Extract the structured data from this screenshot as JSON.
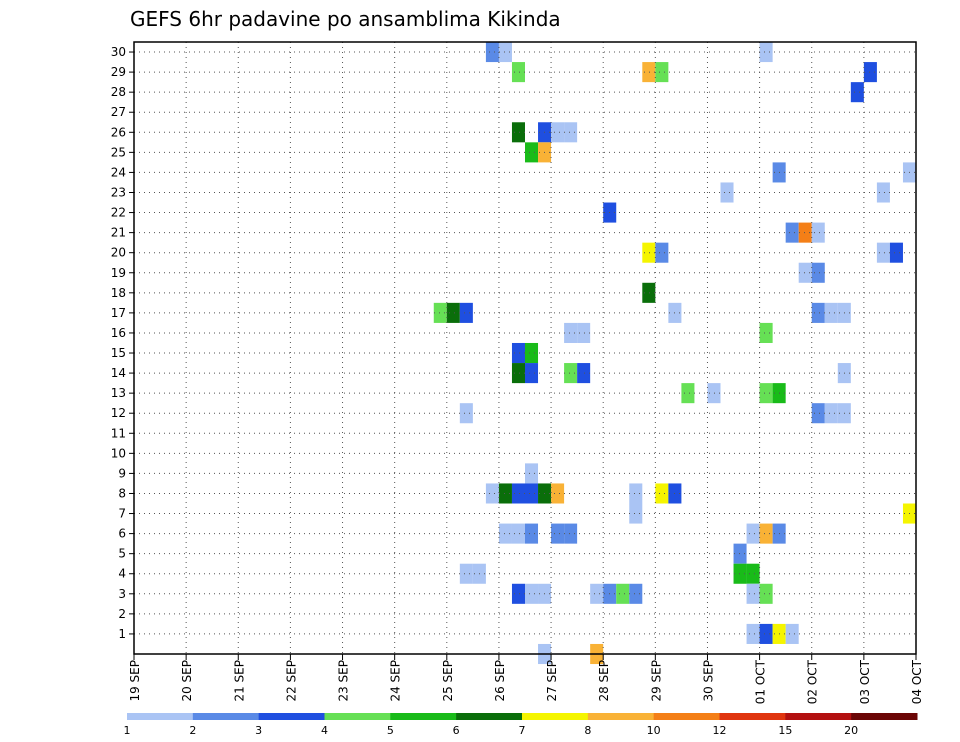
{
  "chart_data": {
    "type": "heatmap",
    "title": "GEFS 6hr padavine po ansamblima Kikinda",
    "xlabel": "",
    "ylabel": "",
    "x_ticks": [
      "19 SEP",
      "20 SEP",
      "21 SEP",
      "22 SEP",
      "23 SEP",
      "24 SEP",
      "25 SEP",
      "26 SEP",
      "27 SEP",
      "28 SEP",
      "29 SEP",
      "30 SEP",
      "01 OCT",
      "02 OCT",
      "03 OCT",
      "04 OCT"
    ],
    "x_step_hours": 6,
    "y_ticks": [
      "1",
      "2",
      "3",
      "4",
      "5",
      "6",
      "7",
      "8",
      "9",
      "10",
      "11",
      "12",
      "13",
      "14",
      "15",
      "16",
      "17",
      "18",
      "19",
      "20",
      "21",
      "22",
      "23",
      "24",
      "25",
      "26",
      "27",
      "28",
      "29",
      "30"
    ],
    "grid": true,
    "legend": {
      "placement": "bottom",
      "colors": [
        "#aac4f4",
        "#5a8ae6",
        "#1f4fe0",
        "#66e055",
        "#19bb19",
        "#0a6e0a",
        "#f5f500",
        "#f9b236",
        "#f47f17",
        "#e0350f",
        "#b31010",
        "#6b0606"
      ],
      "labels": [
        "1",
        "2",
        "3",
        "4",
        "5",
        "6",
        "7",
        "8",
        "10",
        "12",
        "15",
        "20"
      ]
    },
    "cells": [
      {
        "m": 30,
        "s": 27,
        "c": 2
      },
      {
        "m": 30,
        "s": 28,
        "c": 1
      },
      {
        "m": 30,
        "s": 48,
        "c": 1
      },
      {
        "m": 29,
        "s": 29,
        "c": 4
      },
      {
        "m": 29,
        "s": 39,
        "c": 8
      },
      {
        "m": 29,
        "s": 40,
        "c": 4
      },
      {
        "m": 29,
        "s": 56,
        "c": 3
      },
      {
        "m": 28,
        "s": 55,
        "c": 3
      },
      {
        "m": 26,
        "s": 29,
        "c": 6
      },
      {
        "m": 26,
        "s": 31,
        "c": 3
      },
      {
        "m": 26,
        "s": 32,
        "c": 1
      },
      {
        "m": 26,
        "s": 33,
        "c": 1
      },
      {
        "m": 25,
        "s": 30,
        "c": 5
      },
      {
        "m": 25,
        "s": 31,
        "c": 8
      },
      {
        "m": 24,
        "s": 49,
        "c": 2
      },
      {
        "m": 24,
        "s": 59,
        "c": 1
      },
      {
        "m": 23,
        "s": 45,
        "c": 1
      },
      {
        "m": 23,
        "s": 57,
        "c": 1
      },
      {
        "m": 22,
        "s": 36,
        "c": 3
      },
      {
        "m": 21,
        "s": 50,
        "c": 2
      },
      {
        "m": 21,
        "s": 51,
        "c": 9
      },
      {
        "m": 21,
        "s": 52,
        "c": 1
      },
      {
        "m": 20,
        "s": 39,
        "c": 7
      },
      {
        "m": 20,
        "s": 40,
        "c": 2
      },
      {
        "m": 20,
        "s": 57,
        "c": 1
      },
      {
        "m": 20,
        "s": 58,
        "c": 3
      },
      {
        "m": 19,
        "s": 51,
        "c": 1
      },
      {
        "m": 19,
        "s": 52,
        "c": 2
      },
      {
        "m": 18,
        "s": 39,
        "c": 6
      },
      {
        "m": 17,
        "s": 23,
        "c": 4
      },
      {
        "m": 17,
        "s": 24,
        "c": 6
      },
      {
        "m": 17,
        "s": 25,
        "c": 3
      },
      {
        "m": 17,
        "s": 41,
        "c": 1
      },
      {
        "m": 17,
        "s": 52,
        "c": 2
      },
      {
        "m": 17,
        "s": 53,
        "c": 1
      },
      {
        "m": 17,
        "s": 54,
        "c": 1
      },
      {
        "m": 16,
        "s": 33,
        "c": 1
      },
      {
        "m": 16,
        "s": 34,
        "c": 1
      },
      {
        "m": 16,
        "s": 48,
        "c": 4
      },
      {
        "m": 15,
        "s": 29,
        "c": 3
      },
      {
        "m": 15,
        "s": 30,
        "c": 5
      },
      {
        "m": 14,
        "s": 29,
        "c": 6
      },
      {
        "m": 14,
        "s": 30,
        "c": 3
      },
      {
        "m": 14,
        "s": 33,
        "c": 4
      },
      {
        "m": 14,
        "s": 34,
        "c": 3
      },
      {
        "m": 14,
        "s": 54,
        "c": 1
      },
      {
        "m": 13,
        "s": 42,
        "c": 4
      },
      {
        "m": 13,
        "s": 44,
        "c": 1
      },
      {
        "m": 13,
        "s": 48,
        "c": 4
      },
      {
        "m": 13,
        "s": 49,
        "c": 5
      },
      {
        "m": 12,
        "s": 25,
        "c": 1
      },
      {
        "m": 12,
        "s": 52,
        "c": 2
      },
      {
        "m": 12,
        "s": 53,
        "c": 1
      },
      {
        "m": 12,
        "s": 54,
        "c": 1
      },
      {
        "m": 9,
        "s": 30,
        "c": 1
      },
      {
        "m": 8,
        "s": 27,
        "c": 1
      },
      {
        "m": 8,
        "s": 28,
        "c": 6
      },
      {
        "m": 8,
        "s": 29,
        "c": 3
      },
      {
        "m": 8,
        "s": 30,
        "c": 3
      },
      {
        "m": 8,
        "s": 31,
        "c": 6
      },
      {
        "m": 8,
        "s": 32,
        "c": 8
      },
      {
        "m": 8,
        "s": 38,
        "c": 1
      },
      {
        "m": 8,
        "s": 40,
        "c": 7
      },
      {
        "m": 8,
        "s": 41,
        "c": 3
      },
      {
        "m": 7,
        "s": 38,
        "c": 1
      },
      {
        "m": 7,
        "s": 59,
        "c": 7
      },
      {
        "m": 6,
        "s": 28,
        "c": 1
      },
      {
        "m": 6,
        "s": 29,
        "c": 1
      },
      {
        "m": 6,
        "s": 30,
        "c": 2
      },
      {
        "m": 6,
        "s": 32,
        "c": 2
      },
      {
        "m": 6,
        "s": 33,
        "c": 2
      },
      {
        "m": 6,
        "s": 47,
        "c": 1
      },
      {
        "m": 6,
        "s": 48,
        "c": 8
      },
      {
        "m": 6,
        "s": 49,
        "c": 2
      },
      {
        "m": 5,
        "s": 46,
        "c": 2
      },
      {
        "m": 4,
        "s": 25,
        "c": 1
      },
      {
        "m": 4,
        "s": 26,
        "c": 1
      },
      {
        "m": 4,
        "s": 46,
        "c": 5
      },
      {
        "m": 4,
        "s": 47,
        "c": 5
      },
      {
        "m": 3,
        "s": 29,
        "c": 3
      },
      {
        "m": 3,
        "s": 30,
        "c": 1
      },
      {
        "m": 3,
        "s": 31,
        "c": 1
      },
      {
        "m": 3,
        "s": 35,
        "c": 1
      },
      {
        "m": 3,
        "s": 36,
        "c": 2
      },
      {
        "m": 3,
        "s": 37,
        "c": 4
      },
      {
        "m": 3,
        "s": 38,
        "c": 2
      },
      {
        "m": 3,
        "s": 47,
        "c": 1
      },
      {
        "m": 3,
        "s": 48,
        "c": 4
      },
      {
        "m": 1,
        "s": 47,
        "c": 1
      },
      {
        "m": 1,
        "s": 48,
        "c": 3
      },
      {
        "m": 1,
        "s": 49,
        "c": 7
      },
      {
        "m": 1,
        "s": 50,
        "c": 1
      },
      {
        "m": 0,
        "s": 31,
        "c": 1
      },
      {
        "m": 0,
        "s": 35,
        "c": 8
      }
    ]
  }
}
